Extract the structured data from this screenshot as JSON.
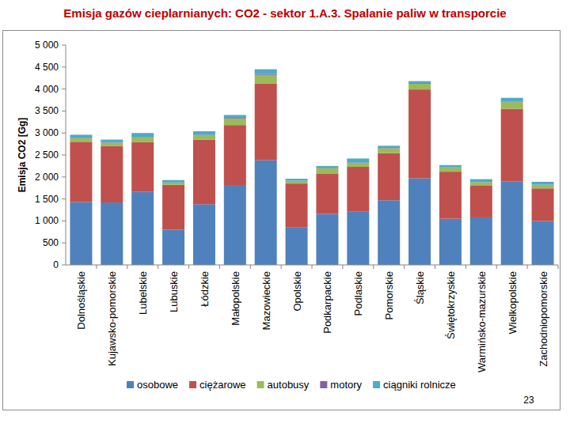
{
  "chart_data": {
    "type": "bar",
    "stacked": true,
    "title": "Emisja gazów cieplarnianych: CO2 - sektor 1.A.3. Spalanie paliw w transporcie",
    "y_label": "Emisja CO2 [Gg]",
    "categories": [
      "Dolnośląskie",
      "Kujawsko-pomorskie",
      "Lubelskie",
      "Lubuskie",
      "Łódzkie",
      "Małopolskie",
      "Mazowieckie",
      "Opolskie",
      "Podkarpackie",
      "Podlaskie",
      "Pomorskie",
      "Śląskie",
      "Świętokrzyskie",
      "Warmińsko-mazurskie",
      "Wielkopolskie",
      "Zachodniopomorskie"
    ],
    "series": [
      {
        "name": "osobowe",
        "color": "#4f81bd",
        "values": [
          1430,
          1420,
          1660,
          800,
          1380,
          1800,
          2380,
          850,
          1160,
          1220,
          1470,
          1970,
          1050,
          1080,
          1900,
          1000
        ]
      },
      {
        "name": "ciężarowe",
        "color": "#c0504d",
        "values": [
          1370,
          1280,
          1130,
          1020,
          1470,
          1380,
          1740,
          1000,
          920,
          1010,
          1070,
          2020,
          1070,
          730,
          1650,
          740
        ]
      },
      {
        "name": "autobusy",
        "color": "#9bbb59",
        "values": [
          80,
          80,
          110,
          50,
          100,
          150,
          200,
          60,
          120,
          90,
          110,
          130,
          90,
          70,
          150,
          80
        ]
      },
      {
        "name": "motory",
        "color": "#8064a2",
        "values": [
          10,
          10,
          10,
          5,
          10,
          15,
          20,
          5,
          10,
          10,
          10,
          15,
          10,
          5,
          15,
          5
        ]
      },
      {
        "name": "ciągniki rolnicze",
        "color": "#4bacc6",
        "values": [
          70,
          60,
          90,
          55,
          80,
          65,
          110,
          45,
          40,
          90,
          50,
          45,
          50,
          65,
          85,
          65
        ]
      }
    ],
    "ylim": [
      0,
      5000
    ],
    "yticks": [
      0,
      500,
      {
        "value": 1000,
        "label": "1 000"
      },
      {
        "value": 1500,
        "label": "1 500"
      },
      {
        "value": 2000,
        "label": "2 000"
      },
      {
        "value": 2500,
        "label": "2 500"
      },
      {
        "value": 3000,
        "label": "3 000"
      },
      {
        "value": 3500,
        "label": "3 500"
      },
      {
        "value": 4000,
        "label": "4 000"
      },
      {
        "value": 4500,
        "label": "4 500"
      },
      {
        "value": 5000,
        "label": "5 000"
      }
    ],
    "grid": false,
    "legend": "bottom"
  },
  "page": {
    "number": "23"
  }
}
